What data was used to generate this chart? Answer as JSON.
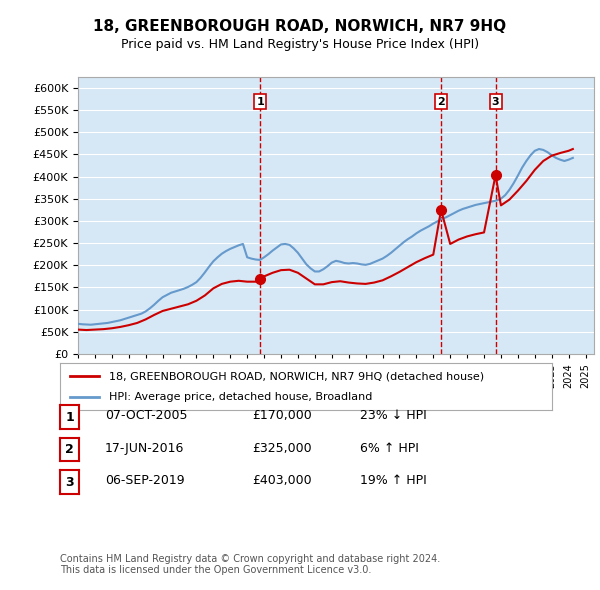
{
  "title": "18, GREENBOROUGH ROAD, NORWICH, NR7 9HQ",
  "subtitle": "Price paid vs. HM Land Registry's House Price Index (HPI)",
  "ylabel_vals": [
    0,
    50000,
    100000,
    150000,
    200000,
    250000,
    300000,
    350000,
    400000,
    450000,
    500000,
    550000,
    600000
  ],
  "ylim": [
    0,
    625000
  ],
  "xlim_start": 1995.0,
  "xlim_end": 2025.5,
  "background_color": "#d6e8f5",
  "plot_bg_color": "#d6e8f5",
  "grid_color": "#ffffff",
  "sale_color": "#cc0000",
  "hpi_color": "#6699cc",
  "vline_color": "#cc0000",
  "vline_style": "--",
  "sale_points": [
    {
      "year": 2005.77,
      "price": 170000,
      "label": "1"
    },
    {
      "year": 2016.46,
      "price": 325000,
      "label": "2"
    },
    {
      "year": 2019.68,
      "price": 403000,
      "label": "3"
    }
  ],
  "vline_years": [
    2005.77,
    2016.46,
    2019.68
  ],
  "legend_sale_label": "18, GREENBOROUGH ROAD, NORWICH, NR7 9HQ (detached house)",
  "legend_hpi_label": "HPI: Average price, detached house, Broadland",
  "table_rows": [
    {
      "num": "1",
      "date": "07-OCT-2005",
      "price": "£170,000",
      "change": "23% ↓ HPI"
    },
    {
      "num": "2",
      "date": "17-JUN-2016",
      "price": "£325,000",
      "change": "6% ↑ HPI"
    },
    {
      "num": "3",
      "date": "06-SEP-2019",
      "price": "£403,000",
      "change": "19% ↑ HPI"
    }
  ],
  "footer": "Contains HM Land Registry data © Crown copyright and database right 2024.\nThis data is licensed under the Open Government Licence v3.0.",
  "hpi_data_x": [
    1995.0,
    1995.25,
    1995.5,
    1995.75,
    1996.0,
    1996.25,
    1996.5,
    1996.75,
    1997.0,
    1997.25,
    1997.5,
    1997.75,
    1998.0,
    1998.25,
    1998.5,
    1998.75,
    1999.0,
    1999.25,
    1999.5,
    1999.75,
    2000.0,
    2000.25,
    2000.5,
    2000.75,
    2001.0,
    2001.25,
    2001.5,
    2001.75,
    2002.0,
    2002.25,
    2002.5,
    2002.75,
    2003.0,
    2003.25,
    2003.5,
    2003.75,
    2004.0,
    2004.25,
    2004.5,
    2004.75,
    2005.0,
    2005.25,
    2005.5,
    2005.75,
    2006.0,
    2006.25,
    2006.5,
    2006.75,
    2007.0,
    2007.25,
    2007.5,
    2007.75,
    2008.0,
    2008.25,
    2008.5,
    2008.75,
    2009.0,
    2009.25,
    2009.5,
    2009.75,
    2010.0,
    2010.25,
    2010.5,
    2010.75,
    2011.0,
    2011.25,
    2011.5,
    2011.75,
    2012.0,
    2012.25,
    2012.5,
    2012.75,
    2013.0,
    2013.25,
    2013.5,
    2013.75,
    2014.0,
    2014.25,
    2014.5,
    2014.75,
    2015.0,
    2015.25,
    2015.5,
    2015.75,
    2016.0,
    2016.25,
    2016.5,
    2016.75,
    2017.0,
    2017.25,
    2017.5,
    2017.75,
    2018.0,
    2018.25,
    2018.5,
    2018.75,
    2019.0,
    2019.25,
    2019.5,
    2019.75,
    2020.0,
    2020.25,
    2020.5,
    2020.75,
    2021.0,
    2021.25,
    2021.5,
    2021.75,
    2022.0,
    2022.25,
    2022.5,
    2022.75,
    2023.0,
    2023.25,
    2023.5,
    2023.75,
    2024.0,
    2024.25
  ],
  "hpi_data_y": [
    68000,
    67000,
    66500,
    66000,
    67000,
    68000,
    69000,
    70000,
    72000,
    74000,
    76000,
    79000,
    82000,
    85000,
    88000,
    91000,
    96000,
    103000,
    111000,
    120000,
    128000,
    133000,
    138000,
    141000,
    144000,
    147000,
    151000,
    156000,
    162000,
    172000,
    184000,
    197000,
    209000,
    218000,
    226000,
    232000,
    237000,
    241000,
    245000,
    248000,
    218000,
    215000,
    213000,
    212000,
    218000,
    225000,
    233000,
    240000,
    247000,
    248000,
    246000,
    238000,
    228000,
    215000,
    202000,
    193000,
    186000,
    186000,
    191000,
    198000,
    206000,
    210000,
    208000,
    205000,
    204000,
    205000,
    204000,
    202000,
    201000,
    203000,
    207000,
    211000,
    215000,
    221000,
    228000,
    236000,
    244000,
    252000,
    259000,
    265000,
    272000,
    278000,
    283000,
    288000,
    294000,
    299000,
    305000,
    308000,
    313000,
    318000,
    323000,
    327000,
    330000,
    333000,
    336000,
    338000,
    340000,
    342000,
    344000,
    346000,
    350000,
    358000,
    370000,
    385000,
    402000,
    420000,
    435000,
    448000,
    458000,
    462000,
    460000,
    455000,
    448000,
    442000,
    438000,
    435000,
    438000,
    442000
  ],
  "sale_data_x": [
    1995.0,
    1995.5,
    1996.0,
    1996.5,
    1997.0,
    1997.5,
    1998.0,
    1998.5,
    1999.0,
    1999.5,
    2000.0,
    2000.5,
    2001.0,
    2001.5,
    2002.0,
    2002.5,
    2003.0,
    2003.5,
    2004.0,
    2004.5,
    2005.0,
    2005.5,
    2005.77,
    2006.0,
    2006.5,
    2007.0,
    2007.5,
    2008.0,
    2008.5,
    2009.0,
    2009.5,
    2010.0,
    2010.5,
    2011.0,
    2011.5,
    2012.0,
    2012.5,
    2013.0,
    2013.5,
    2014.0,
    2014.5,
    2015.0,
    2015.5,
    2016.0,
    2016.46,
    2017.0,
    2017.5,
    2018.0,
    2018.5,
    2019.0,
    2019.68,
    2020.0,
    2020.5,
    2021.0,
    2021.5,
    2022.0,
    2022.5,
    2023.0,
    2023.5,
    2024.0,
    2024.25
  ],
  "sale_data_y": [
    55000,
    54000,
    55000,
    56000,
    58000,
    61000,
    65000,
    70000,
    78000,
    88000,
    97000,
    102000,
    107000,
    112000,
    120000,
    132000,
    148000,
    158000,
    163000,
    165000,
    163000,
    163000,
    170000,
    175000,
    183000,
    189000,
    190000,
    183000,
    170000,
    157000,
    157000,
    162000,
    164000,
    161000,
    159000,
    158000,
    161000,
    166000,
    175000,
    185000,
    196000,
    207000,
    216000,
    224000,
    325000,
    248000,
    258000,
    265000,
    270000,
    274000,
    403000,
    335000,
    348000,
    368000,
    390000,
    415000,
    435000,
    447000,
    453000,
    458000,
    462000
  ]
}
